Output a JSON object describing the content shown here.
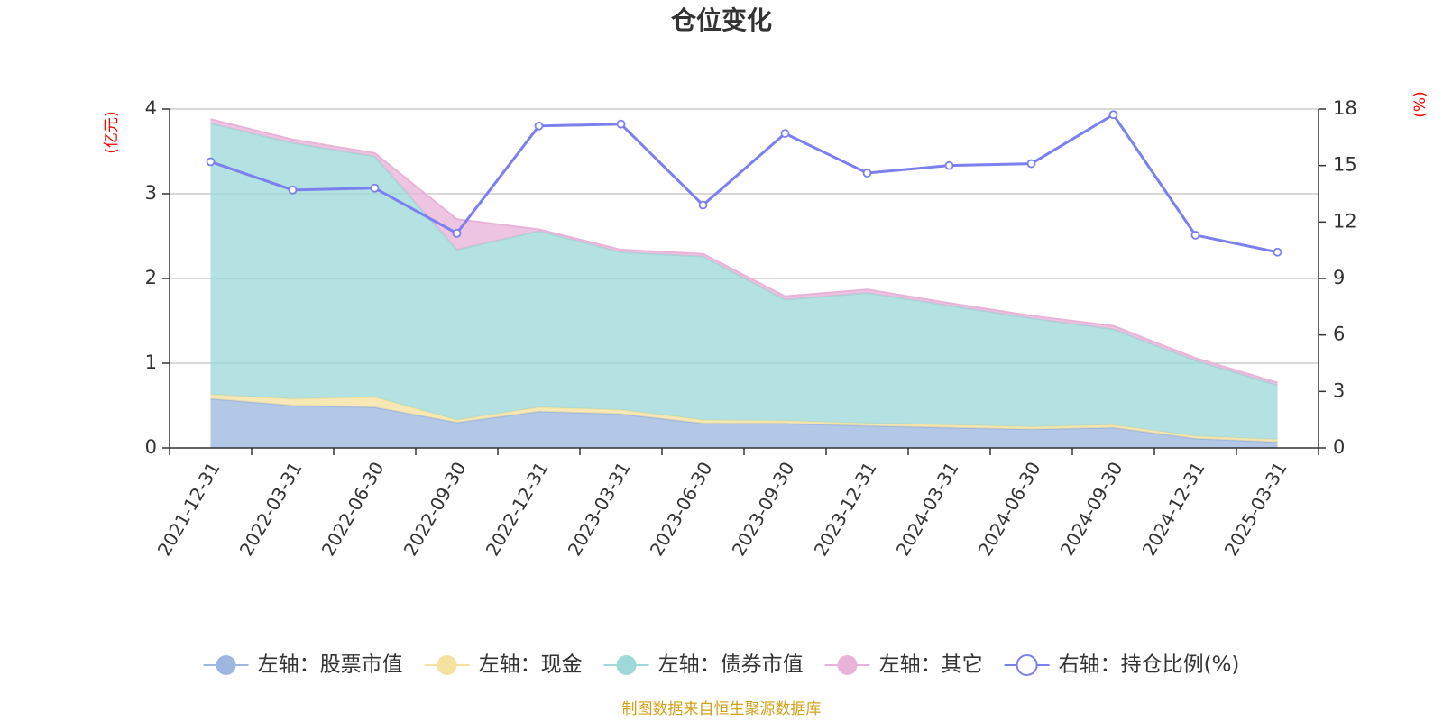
{
  "chart_data": {
    "type": "area",
    "title": "仓位变化",
    "left_unit": "(亿元)",
    "right_unit": "(%)",
    "categories": [
      "2021-12-31",
      "2022-03-31",
      "2022-06-30",
      "2022-09-30",
      "2022-12-31",
      "2023-03-31",
      "2023-06-30",
      "2023-09-30",
      "2023-12-31",
      "2024-03-31",
      "2024-06-30",
      "2024-09-30",
      "2024-12-31",
      "2025-03-31"
    ],
    "left_axis": {
      "min": 0,
      "max": 4,
      "ticks": [
        "0",
        "1",
        "2",
        "3",
        "4"
      ]
    },
    "right_axis": {
      "min": 0,
      "max": 18,
      "ticks": [
        "0",
        "3",
        "6",
        "9",
        "12",
        "15",
        "18"
      ]
    },
    "stacked_series": [
      {
        "name": "左轴：股票市值",
        "color": "#9db7e0",
        "values": [
          0.58,
          0.5,
          0.48,
          0.3,
          0.43,
          0.4,
          0.29,
          0.29,
          0.26,
          0.24,
          0.22,
          0.24,
          0.11,
          0.07
        ]
      },
      {
        "name": "左轴：现金",
        "color": "#f5e2a0",
        "values": [
          0.05,
          0.08,
          0.12,
          0.03,
          0.05,
          0.05,
          0.04,
          0.03,
          0.03,
          0.03,
          0.03,
          0.03,
          0.03,
          0.03
        ]
      },
      {
        "name": "左轴：债券市值",
        "color": "#9fd8d8",
        "values": [
          3.2,
          3.02,
          2.84,
          2.01,
          2.08,
          1.86,
          1.93,
          1.43,
          1.54,
          1.41,
          1.28,
          1.13,
          0.89,
          0.64
        ]
      },
      {
        "name": "左轴：其它",
        "color": "#e8b3d8",
        "values": [
          0.05,
          0.04,
          0.04,
          0.36,
          0.02,
          0.03,
          0.03,
          0.04,
          0.04,
          0.03,
          0.03,
          0.04,
          0.03,
          0.03
        ]
      }
    ],
    "line_series": {
      "name": "右轴：持仓比例(%)",
      "color": "#7b7ff0",
      "values": [
        15.2,
        13.7,
        13.8,
        11.4,
        17.1,
        17.2,
        12.9,
        16.7,
        14.6,
        15.0,
        15.1,
        17.7,
        11.3,
        10.4
      ]
    },
    "grid": true,
    "legend_position": "bottom"
  },
  "source_note": "制图数据来自恒生聚源数据库"
}
